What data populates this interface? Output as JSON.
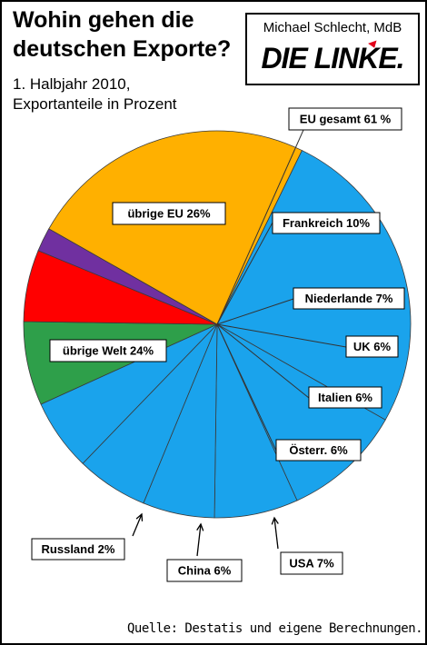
{
  "chart_data": {
    "type": "pie",
    "title": "Wohin gehen die deutschen Exporte?",
    "subtitle": [
      "1. Halbjahr 2010,",
      "Exportanteile in Prozent"
    ],
    "slices": [
      {
        "label": "übrige EU 26%",
        "value": 26,
        "color": "#1aa3ec"
      },
      {
        "label": "Frankreich 10%",
        "value": 10,
        "color": "#1aa3ec"
      },
      {
        "label": "Niederlande 7%",
        "value": 7,
        "color": "#1aa3ec"
      },
      {
        "label": "UK 6%",
        "value": 6,
        "color": "#1aa3ec"
      },
      {
        "label": "Italien 6%",
        "value": 6,
        "color": "#1aa3ec"
      },
      {
        "label": "Österr. 6%",
        "value": 6,
        "color": "#1aa3ec"
      },
      {
        "label": "USA 7%",
        "value": 7,
        "color": "#2e9f4a"
      },
      {
        "label": "China 6%",
        "value": 6,
        "color": "#ff0000"
      },
      {
        "label": "Russland 2%",
        "value": 2,
        "color": "#7030a0"
      },
      {
        "label": "übrige Welt 24%",
        "value": 24,
        "color": "#ffb000"
      }
    ],
    "group_label": "EU gesamt  61 %"
  },
  "header": {
    "author": "Michael Schlecht, MdB",
    "party": "DIE LINKE."
  },
  "footer": {
    "source": "Quelle: Destatis und eigene Berechnungen."
  }
}
